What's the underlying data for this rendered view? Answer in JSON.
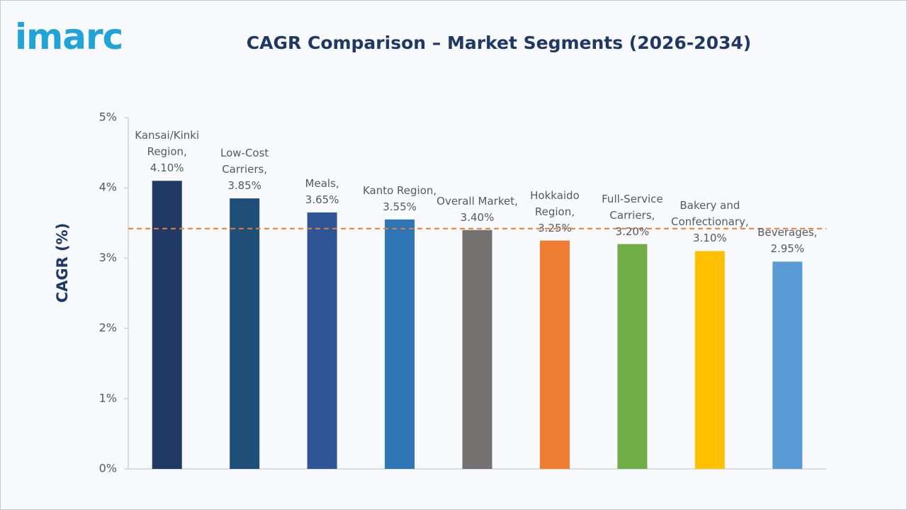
{
  "logo": "imarc",
  "chart_data": {
    "type": "bar",
    "title": "CAGR Comparison – Market Segments (2026-2034)",
    "y_label": "CAGR (%)",
    "categories": [
      "Kansai/Kinki Region,",
      "Low-Cost Carriers,",
      "Meals,",
      "Kanto Region,",
      "Overall Market,",
      "Hokkaido Region,",
      "Full-Service Carriers,",
      "Bakery and Confectionary,",
      "Beverages,"
    ],
    "values": [
      4.1,
      3.85,
      3.65,
      3.55,
      3.4,
      3.25,
      3.2,
      3.1,
      2.95
    ],
    "value_labels": [
      "4.10%",
      "3.85%",
      "3.65%",
      "3.55%",
      "3.40%",
      "3.25%",
      "3.20%",
      "3.10%",
      "2.95%"
    ],
    "colors": [
      "#1f3864",
      "#1f4e79",
      "#2f5597",
      "#2e75b6",
      "#767171",
      "#ed7d31",
      "#70ad47",
      "#ffc000",
      "#5b9bd5"
    ],
    "reference_line": {
      "value": 3.42,
      "color": "#ed7d31"
    },
    "ylim": [
      0,
      5
    ],
    "yticks": [
      {
        "value": 0,
        "label": "0%"
      },
      {
        "value": 1,
        "label": "1%"
      },
      {
        "value": 2,
        "label": "2%"
      },
      {
        "value": 3,
        "label": "3%"
      },
      {
        "value": 4,
        "label": "4%"
      },
      {
        "value": 5,
        "label": "5%"
      }
    ],
    "grid": false
  }
}
